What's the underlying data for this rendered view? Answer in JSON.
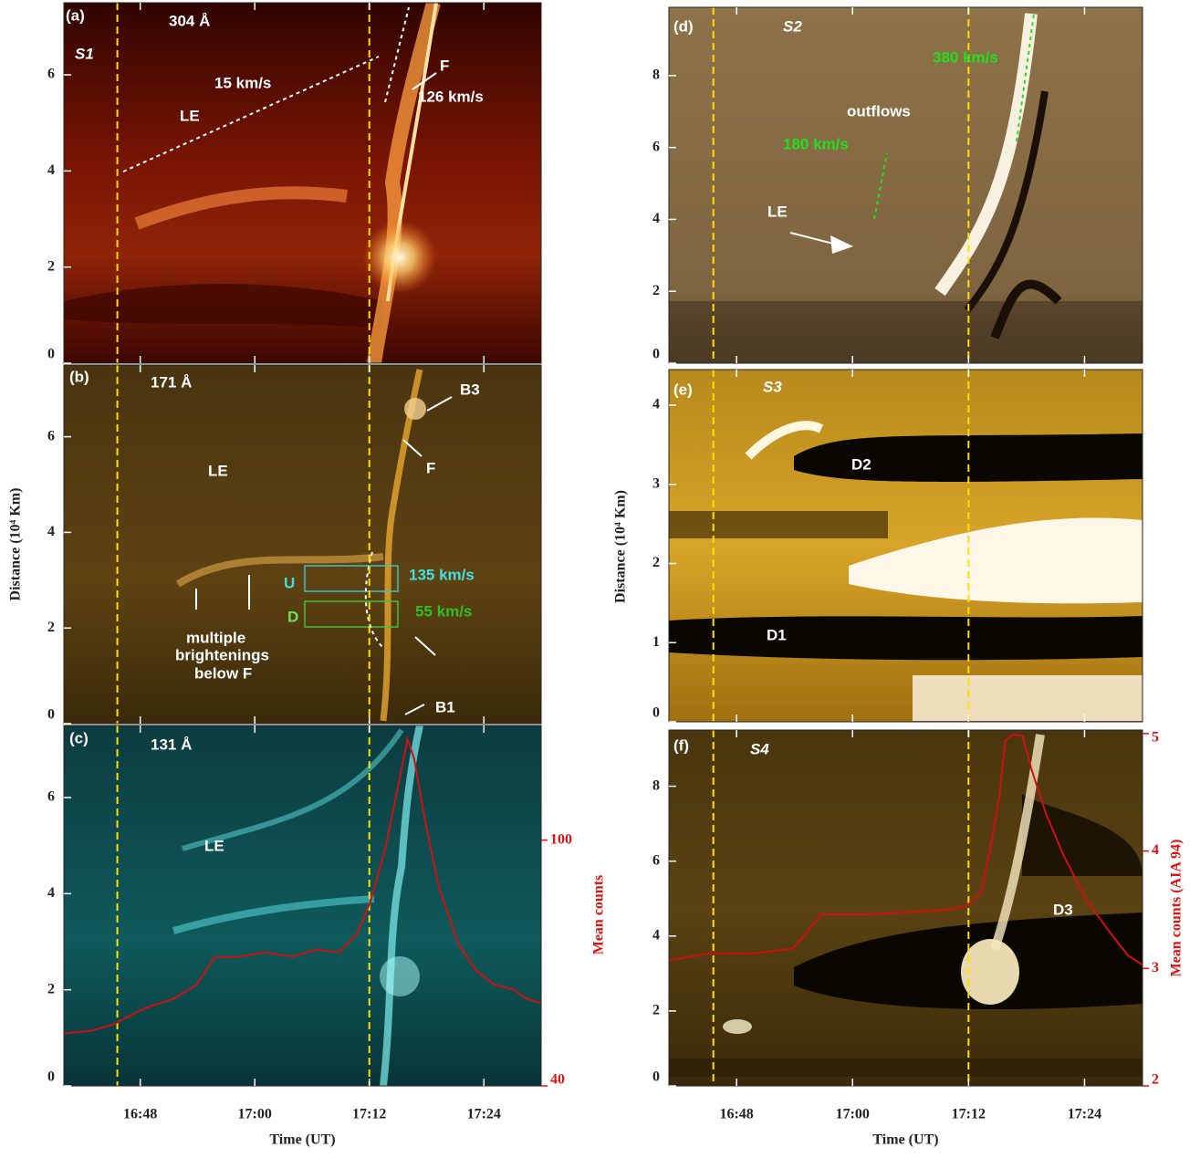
{
  "chart_data": [
    {
      "type": "image",
      "xlim": [
        40,
        90
      ],
      "ylim": [
        0,
        7.5
      ],
      "yticks": [
        0,
        2,
        4,
        6
      ],
      "markers": [
        45.6,
        72.0
      ],
      "marker_color": "#ffe000",
      "annotations": [
        {
          "text": "(a)",
          "color": "#ffffff"
        },
        {
          "text": "304 Å",
          "color": "#ffffff"
        },
        {
          "text": "S1",
          "color": "#ffffff"
        },
        {
          "text": "15 km/s",
          "color": "#ffffff"
        },
        {
          "text": "LE",
          "color": "#ffffff"
        },
        {
          "text": "F",
          "color": "#ffffff"
        },
        {
          "text": "126 km/s",
          "color": "#ffffff"
        }
      ]
    },
    {
      "type": "image",
      "xlim": [
        40,
        90
      ],
      "ylim": [
        0,
        7.5
      ],
      "yticks": [
        0,
        2,
        4,
        6
      ],
      "markers": [
        45.6,
        72.0
      ],
      "marker_color": "#ffe000",
      "ylabel": "Distance (10⁴ Km)",
      "annotations": [
        {
          "text": "(b)",
          "color": "#ffffff"
        },
        {
          "text": "171 Å",
          "color": "#ffffff"
        },
        {
          "text": "LE",
          "color": "#ffffff"
        },
        {
          "text": "B3",
          "color": "#ffffff"
        },
        {
          "text": "F",
          "color": "#ffffff"
        },
        {
          "text": "U",
          "color": "#40e0e0"
        },
        {
          "text": "135 km/s",
          "color": "#40e0e0"
        },
        {
          "text": "D",
          "color": "#70e060"
        },
        {
          "text": "55 km/s",
          "color": "#30c020"
        },
        {
          "text": "multiple",
          "color": "#ffffff"
        },
        {
          "text": "brightenings",
          "color": "#ffffff"
        },
        {
          "text": "below F",
          "color": "#ffffff"
        },
        {
          "text": "B1",
          "color": "#ffffff"
        }
      ]
    },
    {
      "type": "line",
      "xlim": [
        40,
        90
      ],
      "ylim": [
        0,
        7.5
      ],
      "yticks": [
        0,
        2,
        4,
        6
      ],
      "markers": [
        45.6,
        72.0
      ],
      "marker_color": "#ffe000",
      "xticks": [
        {
          "value": 48,
          "label": "16:48"
        },
        {
          "value": 60,
          "label": "17:00"
        },
        {
          "value": 72,
          "label": "17:12"
        },
        {
          "value": 84,
          "label": "17:24"
        }
      ],
      "xlabel": "Time (UT)",
      "y2lim": [
        40,
        128
      ],
      "y2ticks": [
        40,
        100
      ],
      "y2label": "Mean counts",
      "y2color": "#e01010",
      "x": [
        40.0,
        42.9,
        45.3,
        46.7,
        48.6,
        51.5,
        53.9,
        55.8,
        58.2,
        61.1,
        64.0,
        66.4,
        68.8,
        70.7,
        72.1,
        73.6,
        75.0,
        76.0,
        76.7,
        77.9,
        79.3,
        81.3,
        83.2,
        85.1,
        87.0,
        88.5,
        90.0
      ],
      "series": [
        {
          "color": "#d01010",
          "axis": "y2",
          "values": [
            52.8,
            53.5,
            55.1,
            56.9,
            59.1,
            61.3,
            64.7,
            71.5,
            71.5,
            72.6,
            71.5,
            73.3,
            72.6,
            77.1,
            84.9,
            97.3,
            113.0,
            124.7,
            119.8,
            104.0,
            88.3,
            74.8,
            68.1,
            64.7,
            63.6,
            61.3,
            60.2
          ]
        }
      ],
      "annotations": [
        {
          "text": "(c)",
          "color": "#ffffff"
        },
        {
          "text": "131 Å",
          "color": "#ffffff"
        },
        {
          "text": "LE",
          "color": "#ffffff"
        }
      ]
    },
    {
      "type": "image",
      "xlim": [
        41,
        90
      ],
      "ylim": [
        0,
        9.9
      ],
      "yticks": [
        0,
        2,
        4,
        6,
        8
      ],
      "markers": [
        45.6,
        72.0
      ],
      "marker_color": "#ffe000",
      "annotations": [
        {
          "text": "(d)",
          "color": "#ffffff"
        },
        {
          "text": "S2",
          "color": "#ffffff"
        },
        {
          "text": "380 km/s",
          "color": "#20e020"
        },
        {
          "text": "outflows",
          "color": "#ffffff"
        },
        {
          "text": "180 km/s",
          "color": "#20e020"
        },
        {
          "text": "LE",
          "color": "#ffffff"
        }
      ]
    },
    {
      "type": "image",
      "xlim": [
        41,
        90
      ],
      "ylim": [
        0,
        4.45
      ],
      "yticks": [
        0,
        1,
        2,
        3,
        4
      ],
      "markers": [
        45.6,
        72.0
      ],
      "marker_color": "#ffe000",
      "ylabel": "Distance (10⁴ Km)",
      "annotations": [
        {
          "text": "(e)",
          "color": "#ffffff"
        },
        {
          "text": "S3",
          "color": "#ffffff"
        },
        {
          "text": "D2",
          "color": "#ffffff"
        },
        {
          "text": "D1",
          "color": "#ffffff"
        }
      ]
    },
    {
      "type": "line",
      "xlim": [
        41,
        90
      ],
      "ylim": [
        0,
        9.5
      ],
      "yticks": [
        0,
        2,
        4,
        6,
        8
      ],
      "markers": [
        45.6,
        72.0
      ],
      "marker_color": "#ffe000",
      "xticks": [
        {
          "value": 48,
          "label": "16:48"
        },
        {
          "value": 60,
          "label": "17:00"
        },
        {
          "value": 72,
          "label": "17:12"
        },
        {
          "value": 84,
          "label": "17:24"
        }
      ],
      "xlabel": "Time (UT)",
      "y2lim": [
        2,
        5.03
      ],
      "y2ticks": [
        2,
        3,
        4,
        5
      ],
      "y2label": "Mean counts (AIA 94)",
      "y2color": "#e01010",
      "x": [
        41.0,
        45.3,
        50.0,
        53.8,
        55.3,
        56.7,
        61.4,
        66.2,
        70.0,
        71.9,
        73.3,
        74.2,
        75.2,
        75.8,
        76.6,
        77.6,
        78.5,
        80.0,
        81.8,
        84.2,
        86.6,
        88.5,
        90.0
      ],
      "series": [
        {
          "color": "#d01010",
          "axis": "y2",
          "values": [
            3.07,
            3.13,
            3.13,
            3.17,
            3.31,
            3.46,
            3.46,
            3.48,
            3.5,
            3.54,
            3.65,
            4.0,
            4.47,
            4.94,
            4.99,
            4.98,
            4.7,
            4.32,
            3.97,
            3.58,
            3.31,
            3.11,
            3.03
          ]
        }
      ],
      "annotations": [
        {
          "text": "(f)",
          "color": "#ffffff"
        },
        {
          "text": "S4",
          "color": "#ffffff"
        },
        {
          "text": "D3",
          "color": "#ffffff"
        }
      ]
    }
  ]
}
